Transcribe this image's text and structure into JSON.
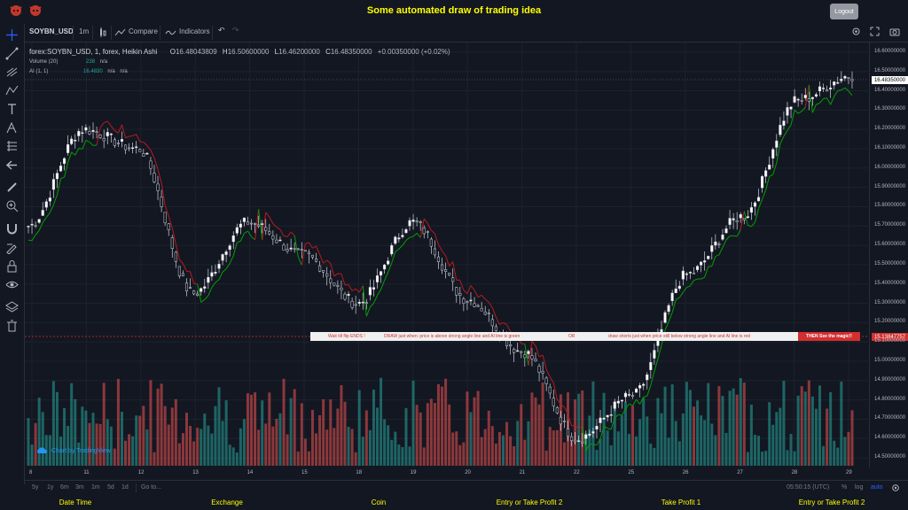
{
  "header": {
    "title": "Some automated draw of trading idea",
    "logout_label": "Logout"
  },
  "toolbar": {
    "symbol": "SOYBN_USD",
    "interval": "1m",
    "compare": "Compare",
    "indicators": "Indicators"
  },
  "legend": {
    "symbol_line": "forex:SOYBN_USD, 1, forex, Heikin Ashi",
    "o_label": "O",
    "o_value": "16.48043809",
    "h_label": "H",
    "h_value": "16.50600000",
    "l_label": "L",
    "l_value": "16.46200000",
    "c_label": "C",
    "c_value": "16.48350000",
    "change": "+0.00350000 (+0.02%)",
    "volume_label": "Volume (20)",
    "volume_value": "238",
    "volume_na": "n/a",
    "ai_label": "AI (1, 1)",
    "ai_value": "16.4830",
    "ai_na1": "n/a",
    "ai_na2": "n/a"
  },
  "price_axis": {
    "labels": [
      "16.60000000",
      "16.50000000",
      "16.40000000",
      "16.30000000",
      "16.20000000",
      "16.10000000",
      "16.00000000",
      "15.90000000",
      "15.80000000",
      "15.70000000",
      "15.60000000",
      "15.50000000",
      "15.40000000",
      "15.30000000",
      "15.20000000",
      "15.10000000",
      "15.00000000",
      "14.90000000",
      "14.80000000",
      "14.70000000",
      "14.60000000",
      "14.50000000"
    ],
    "current_price": "16.48350000",
    "line_price": "15.13847757"
  },
  "time_axis": {
    "labels": [
      "8",
      "11",
      "12",
      "13",
      "14",
      "15",
      "18",
      "19",
      "20",
      "21",
      "22",
      "25",
      "26",
      "27",
      "28",
      "29"
    ]
  },
  "banner": {
    "part1": "Wait till flip ENDS  !",
    "part2": "DRAW just when:  price is above strong angle line and AI line is green",
    "part3": "OR",
    "part4": "draw shorts just when price still below strong angle line and AI line is red",
    "part5": "THEN See the magic!!"
  },
  "watermark": "Chart by TradingView",
  "bottombar": {
    "ranges": [
      "5y",
      "1y",
      "6m",
      "3m",
      "1m",
      "5d",
      "1d"
    ],
    "goto": "Go to...",
    "time": "05:50:15 (UTC)",
    "percent": "%",
    "log": "log",
    "auto": "auto"
  },
  "footer": {
    "columns": [
      "Date Time",
      "Exchange",
      "Coin",
      "Entry or Take Profit 2",
      "Take Profit 1",
      "Entry or Take Profit 2"
    ]
  },
  "colors": {
    "bg": "#131722",
    "title_yellow": "#ffff00",
    "up_volume": "#26a69a",
    "down_volume": "#ef5350",
    "ai_green": "#00a000",
    "ai_red": "#b71c1c",
    "banner_red": "#d32f2f"
  },
  "chart_data": {
    "type": "candlestick",
    "ylim": [
      14.45,
      16.65
    ],
    "key_points": [
      {
        "day": "8",
        "price": 15.7
      },
      {
        "day": "11",
        "price": 16.2
      },
      {
        "day": "12",
        "price": 16.1
      },
      {
        "day": "13",
        "price": 15.35
      },
      {
        "day": "14",
        "price": 15.72
      },
      {
        "day": "15",
        "price": 15.55
      },
      {
        "day": "18",
        "price": 15.3
      },
      {
        "day": "19",
        "price": 15.72
      },
      {
        "day": "20",
        "price": 15.32
      },
      {
        "day": "21",
        "price": 15.05
      },
      {
        "day": "22",
        "price": 14.6
      },
      {
        "day": "25",
        "price": 14.82
      },
      {
        "day": "26",
        "price": 15.45
      },
      {
        "day": "27",
        "price": 15.75
      },
      {
        "day": "28",
        "price": 16.35
      },
      {
        "day": "29",
        "price": 16.48
      }
    ]
  }
}
